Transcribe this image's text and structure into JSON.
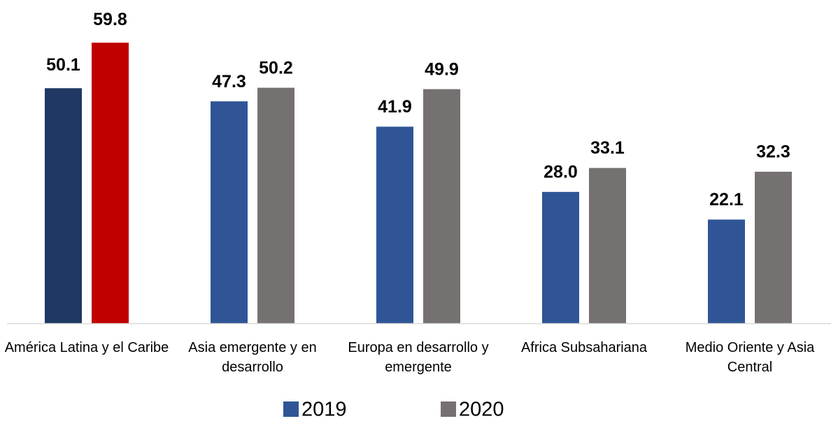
{
  "chart_data": {
    "type": "bar",
    "categories": [
      "América Latina y el Caribe",
      "Asia emergente y en desarrollo",
      "Europa en desarrollo y emergente",
      "Africa Subsahariana",
      "Medio Oriente y Asia Central"
    ],
    "series": [
      {
        "name": "2019",
        "color": "#2f5597",
        "colors": [
          "#1f3864",
          "#2f5597",
          "#2f5597",
          "#2f5597",
          "#2f5597"
        ],
        "values": [
          50.1,
          47.3,
          41.9,
          28.0,
          22.1
        ],
        "value_labels": [
          "50.1",
          "47.3",
          "41.9",
          "28.0",
          "22.1"
        ]
      },
      {
        "name": "2020",
        "color": "#767171",
        "colors": [
          "#c00000",
          "#767171",
          "#767171",
          "#767171",
          "#767171"
        ],
        "values": [
          59.8,
          50.2,
          49.9,
          33.1,
          32.3
        ],
        "value_labels": [
          "59.8",
          "50.2",
          "49.9",
          "33.1",
          "32.3"
        ]
      }
    ],
    "ylim": [
      0,
      60
    ],
    "legend": "bottom"
  }
}
